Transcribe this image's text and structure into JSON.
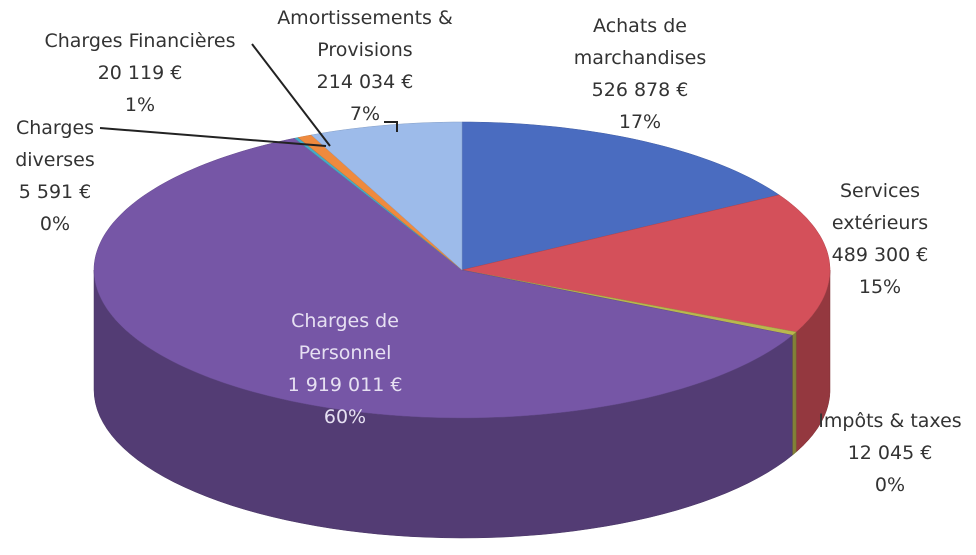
{
  "chart_data": {
    "type": "pie",
    "style": "3d",
    "categories": [
      "Achats de marchandises",
      "Services extérieurs",
      "Impôts & taxes",
      "Charges de Personnel",
      "Charges diverses",
      "Charges Financières",
      "Amortissements & Provisions"
    ],
    "values": [
      526878,
      489300,
      12045,
      1919011,
      5591,
      20119,
      214034
    ],
    "value_labels": [
      "526 878 €",
      "489 300 €",
      "12 045 €",
      "1 919 011 €",
      "5 591 €",
      "20 119 €",
      "214 034 €"
    ],
    "percent_labels": [
      "17%",
      "15%",
      "0%",
      "60%",
      "0%",
      "1%",
      "7%"
    ],
    "colors": [
      "#4a6cc0",
      "#d4505a",
      "#b9b84e",
      "#7656a6",
      "#46aac4",
      "#ef8a3e",
      "#9dbbea"
    ]
  }
}
